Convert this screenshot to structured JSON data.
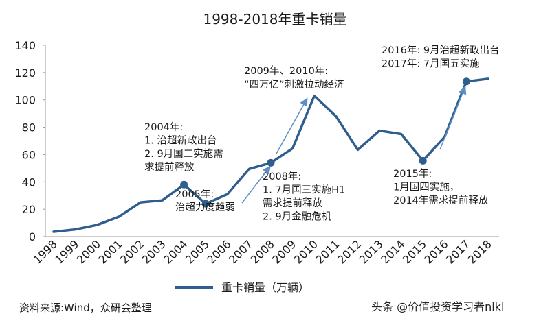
{
  "title": "1998-2018年重卡销量",
  "chart_data": {
    "type": "line",
    "title": "1998-2018年重卡销量",
    "categories": [
      "1998",
      "1999",
      "2000",
      "2001",
      "2002",
      "2003",
      "2004",
      "2005",
      "2006",
      "2007",
      "2008",
      "2009",
      "2010",
      "2011",
      "2012",
      "2013",
      "2014",
      "2015",
      "2016",
      "2017",
      "2018"
    ],
    "series": [
      {
        "name": "重卡销量（万辆）",
        "values": [
          3.5,
          5.2,
          8.5,
          14.5,
          25,
          26.5,
          38,
          24,
          31,
          49.5,
          54,
          64.5,
          103,
          88,
          63.5,
          77.5,
          75,
          55.5,
          73,
          113.5,
          115.5
        ],
        "color": "#2e5d8e"
      }
    ],
    "ylim": [
      0,
      140
    ],
    "yticks": [
      0,
      20,
      40,
      60,
      80,
      100,
      120,
      140
    ],
    "grid": false,
    "legend_position": "bottom",
    "annotations": [
      {
        "year": "2004",
        "lines": [
          "2004年:",
          "1. 治超新政出台",
          "2. 9月国二实施需",
          "求提前释放"
        ]
      },
      {
        "year": "2005",
        "lines": [
          "2005年:",
          "治超力度趋弱"
        ]
      },
      {
        "year": "2008",
        "lines": [
          "2008年:",
          "1. 7月国三实施H1",
          "需求提前释放",
          "2. 9月金融危机"
        ]
      },
      {
        "year": "2010",
        "lines": [
          "2009年、2010年:",
          "“四万亿”刺激拉动经济"
        ]
      },
      {
        "year": "2015",
        "lines": [
          "2015年:",
          "1月国四实施，",
          "2014年需求提前释放"
        ]
      },
      {
        "year": "2017",
        "lines": [
          "2016年: 9月治超新政出台",
          "2017年: 7月国五实施"
        ]
      }
    ]
  },
  "source": "资料来源:Wind，众研会整理",
  "watermark": "头条 @价值投资学习者niki"
}
